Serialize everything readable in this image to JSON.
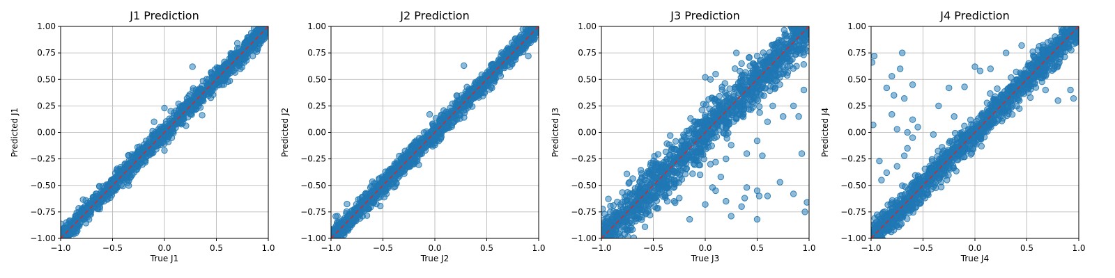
{
  "colors": {
    "points": "#1f77b4",
    "ideal_line": "#d62728",
    "grid": "#b0b0b0"
  },
  "chart_data": [
    {
      "type": "scatter",
      "title": "J1 Prediction",
      "xlabel": "True J1",
      "ylabel": "Predicted J1",
      "xlim": [
        -1.0,
        1.0
      ],
      "ylim": [
        -1.0,
        1.0
      ],
      "xticks": [
        "−1.0",
        "−0.5",
        "0.0",
        "0.5",
        "1.0"
      ],
      "yticks": [
        "−1.00",
        "−0.75",
        "−0.50",
        "−0.25",
        "0.00",
        "0.25",
        "0.50",
        "0.75",
        "1.00"
      ],
      "grid": true,
      "reference_line": "y = x",
      "point_spread": 0.05,
      "outliers": [
        [
          0.27,
          0.62
        ],
        [
          0.0,
          0.23
        ],
        [
          0.0,
          -0.17
        ],
        [
          -0.1,
          0.1
        ],
        [
          0.85,
          0.72
        ]
      ]
    },
    {
      "type": "scatter",
      "title": "J2 Prediction",
      "xlabel": "True J2",
      "ylabel": "Predicted J2",
      "xlim": [
        -1.0,
        1.0
      ],
      "ylim": [
        -1.0,
        1.0
      ],
      "xticks": [
        "−1.0",
        "−0.5",
        "0.0",
        "0.5",
        "1.0"
      ],
      "yticks": [
        "−1.00",
        "−0.75",
        "−0.50",
        "−0.25",
        "0.00",
        "0.25",
        "0.50",
        "0.75",
        "1.00"
      ],
      "grid": true,
      "reference_line": "y = x",
      "point_spread": 0.05,
      "outliers": [
        [
          0.28,
          0.63
        ],
        [
          -0.05,
          0.17
        ],
        [
          0.0,
          -0.12
        ],
        [
          0.9,
          0.72
        ]
      ]
    },
    {
      "type": "scatter",
      "title": "J3 Prediction",
      "xlabel": "True J3",
      "ylabel": "Predicted J3",
      "xlim": [
        -1.0,
        1.0
      ],
      "ylim": [
        -1.0,
        1.0
      ],
      "xticks": [
        "−1.0",
        "−0.5",
        "0.0",
        "0.5",
        "1.0"
      ],
      "yticks": [
        "−1.00",
        "−0.75",
        "−0.50",
        "−0.25",
        "0.00",
        "0.25",
        "0.50",
        "0.75",
        "1.00"
      ],
      "grid": true,
      "reference_line": "y = x",
      "point_spread": 0.11,
      "outliers": [
        [
          0.0,
          0.52
        ],
        [
          0.05,
          0.5
        ],
        [
          0.1,
          0.55
        ],
        [
          0.3,
          0.75
        ],
        [
          0.35,
          0.65
        ],
        [
          0.5,
          0.72
        ],
        [
          0.95,
          0.4
        ],
        [
          0.85,
          0.25
        ],
        [
          0.9,
          0.15
        ],
        [
          0.6,
          0.1
        ],
        [
          0.5,
          -0.08
        ],
        [
          0.25,
          -0.12
        ],
        [
          0.2,
          -0.25
        ],
        [
          0.4,
          -0.2
        ],
        [
          0.55,
          -0.22
        ],
        [
          0.1,
          -0.28
        ],
        [
          0.05,
          -0.3
        ],
        [
          0.15,
          -0.42
        ],
        [
          0.07,
          -0.52
        ],
        [
          0.1,
          -0.55
        ],
        [
          0.2,
          -0.65
        ],
        [
          0.38,
          -0.62
        ],
        [
          0.4,
          -0.52
        ],
        [
          0.5,
          -0.55
        ],
        [
          0.52,
          -0.6
        ],
        [
          0.6,
          -0.6
        ],
        [
          0.72,
          -0.47
        ],
        [
          0.85,
          -0.58
        ],
        [
          0.93,
          -0.2
        ],
        [
          0.96,
          -0.75
        ],
        [
          0.98,
          -0.66
        ],
        [
          0.5,
          -0.82
        ],
        [
          0.35,
          -0.7
        ],
        [
          0.25,
          -0.79
        ],
        [
          0.0,
          -0.68
        ],
        [
          -0.15,
          -0.82
        ],
        [
          -0.25,
          -0.62
        ],
        [
          -0.3,
          -0.65
        ],
        [
          -0.05,
          -0.4
        ],
        [
          -0.18,
          -0.25
        ],
        [
          0.75,
          0.15
        ],
        [
          0.65,
          0.25
        ]
      ]
    },
    {
      "type": "scatter",
      "title": "J4 Prediction",
      "xlabel": "True J4",
      "ylabel": "Predicted J4",
      "xlim": [
        -1.0,
        1.0
      ],
      "ylim": [
        -1.0,
        1.0
      ],
      "xticks": [
        "−1.0",
        "−0.5",
        "0.0",
        "0.5",
        "1.0"
      ],
      "yticks": [
        "−1.00",
        "−0.75",
        "−0.50",
        "−0.25",
        "0.00",
        "0.25",
        "0.50",
        "0.75",
        "1.00"
      ],
      "grid": true,
      "reference_line": "y = x",
      "point_spread": 0.07,
      "outliers": [
        [
          -0.97,
          0.72
        ],
        [
          -0.99,
          0.66
        ],
        [
          -0.7,
          0.75
        ],
        [
          -0.8,
          0.53
        ],
        [
          -0.72,
          0.6
        ],
        [
          -0.85,
          0.42
        ],
        [
          -0.78,
          0.35
        ],
        [
          -0.68,
          0.32
        ],
        [
          -0.6,
          0.45
        ],
        [
          -0.8,
          0.17
        ],
        [
          -0.75,
          0.03
        ],
        [
          -0.6,
          0.12
        ],
        [
          -0.65,
          0.0
        ],
        [
          -0.55,
          0.05
        ],
        [
          -0.98,
          0.07
        ],
        [
          -0.92,
          -0.27
        ],
        [
          -0.9,
          -0.45
        ],
        [
          -0.85,
          -0.38
        ],
        [
          -0.75,
          -0.32
        ],
        [
          -0.65,
          -0.15
        ],
        [
          -0.68,
          -0.22
        ],
        [
          -0.6,
          -0.05
        ],
        [
          -0.4,
          -0.02
        ],
        [
          -0.35,
          0.25
        ],
        [
          -0.25,
          0.42
        ],
        [
          -0.2,
          0.15
        ],
        [
          -0.1,
          0.43
        ],
        [
          0.0,
          0.62
        ],
        [
          0.05,
          0.58
        ],
        [
          0.15,
          0.6
        ],
        [
          0.3,
          0.75
        ],
        [
          0.45,
          0.82
        ],
        [
          0.92,
          0.4
        ],
        [
          0.95,
          0.32
        ],
        [
          0.8,
          0.3
        ],
        [
          0.68,
          0.4
        ]
      ]
    }
  ]
}
